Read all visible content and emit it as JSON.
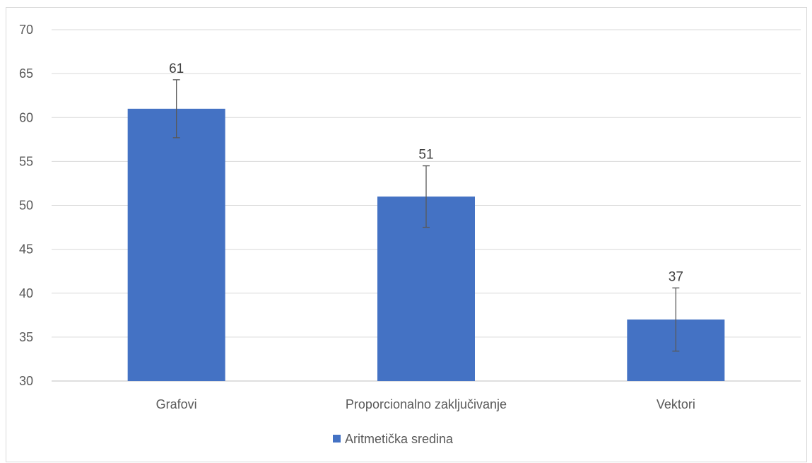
{
  "chart_data": {
    "type": "bar",
    "categories": [
      "Grafovi",
      "Proporcionalno zaključivanje",
      "Vektori"
    ],
    "series": [
      {
        "name": "Aritmetička sredina",
        "values": [
          61,
          51,
          37
        ],
        "error_low": [
          57.7,
          47.5,
          33.4
        ],
        "error_high": [
          64.3,
          54.5,
          40.6
        ],
        "color": "#4472c4"
      }
    ],
    "data_labels": [
      "61",
      "51",
      "37"
    ],
    "ylim": [
      30,
      70
    ],
    "yticks": [
      30,
      35,
      40,
      45,
      50,
      55,
      60,
      65,
      70
    ],
    "ytick_labels": [
      "30",
      "35",
      "40",
      "45",
      "50",
      "55",
      "60",
      "65",
      "70"
    ],
    "grid": true,
    "legend_position": "bottom",
    "title": "",
    "xlabel": "",
    "ylabel": ""
  },
  "colors": {
    "bar": "#4472c4",
    "grid": "#d9d9d9",
    "axis": "#bfbfbf",
    "error_bar": "#595959",
    "text": "#595959"
  }
}
